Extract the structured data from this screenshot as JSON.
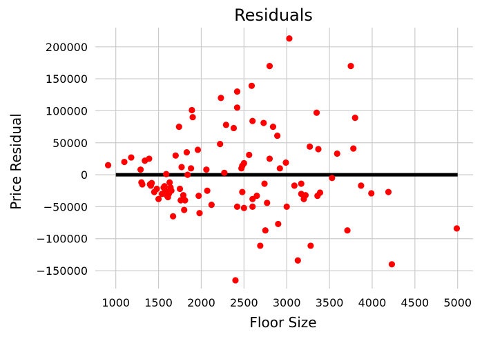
{
  "chart_data": {
    "type": "scatter",
    "title": "Residuals",
    "xlabel": "Floor Size",
    "ylabel": "Price Residual",
    "xlim": [
      760,
      5180
    ],
    "ylim": [
      -178000,
      230000
    ],
    "xticks": [
      1000,
      1500,
      2000,
      2500,
      3000,
      3500,
      4000,
      4500,
      5000
    ],
    "yticks": [
      -150000,
      -100000,
      -50000,
      0,
      50000,
      100000,
      150000,
      200000
    ],
    "xtick_labels": [
      "1000",
      "1500",
      "2000",
      "2500",
      "3000",
      "3500",
      "4000",
      "4500",
      "5000"
    ],
    "ytick_labels": [
      "−150000",
      "−100000",
      "−50000",
      "0",
      "50000",
      "100000",
      "150000",
      "200000"
    ],
    "grid": true,
    "style": "fivethirtyeight",
    "colors": {
      "points": "#ff0000",
      "reference_line": "#000000",
      "grid": "#cbcbcb",
      "background": "#ffffff"
    },
    "reference_line": {
      "y": 0,
      "x_range": [
        1000,
        5000
      ]
    },
    "points": [
      {
        "x": 910,
        "y": 15000
      },
      {
        "x": 1100,
        "y": 20000
      },
      {
        "x": 1180,
        "y": 27000
      },
      {
        "x": 1290,
        "y": 8000
      },
      {
        "x": 1300,
        "y": -12000
      },
      {
        "x": 1310,
        "y": -15000
      },
      {
        "x": 1340,
        "y": 22000
      },
      {
        "x": 1390,
        "y": 25000
      },
      {
        "x": 1400,
        "y": -15000
      },
      {
        "x": 1410,
        "y": -17000
      },
      {
        "x": 1420,
        "y": -13000
      },
      {
        "x": 1450,
        "y": -27000
      },
      {
        "x": 1480,
        "y": -22000
      },
      {
        "x": 1500,
        "y": -38000
      },
      {
        "x": 1540,
        "y": -30000
      },
      {
        "x": 1560,
        "y": -20000
      },
      {
        "x": 1570,
        "y": -18000
      },
      {
        "x": 1580,
        "y": -25000
      },
      {
        "x": 1590,
        "y": 1000
      },
      {
        "x": 1600,
        "y": -33000
      },
      {
        "x": 1610,
        "y": -35000
      },
      {
        "x": 1620,
        "y": -30000
      },
      {
        "x": 1630,
        "y": -12000
      },
      {
        "x": 1640,
        "y": -20000
      },
      {
        "x": 1650,
        "y": -25000
      },
      {
        "x": 1670,
        "y": -65000
      },
      {
        "x": 1700,
        "y": 30000
      },
      {
        "x": 1740,
        "y": 75000
      },
      {
        "x": 1750,
        "y": -22000
      },
      {
        "x": 1760,
        "y": -40000
      },
      {
        "x": 1770,
        "y": 12000
      },
      {
        "x": 1790,
        "y": -32000
      },
      {
        "x": 1800,
        "y": -55000
      },
      {
        "x": 1810,
        "y": -40000
      },
      {
        "x": 1830,
        "y": 35000
      },
      {
        "x": 1840,
        "y": 0
      },
      {
        "x": 1880,
        "y": 10000
      },
      {
        "x": 1890,
        "y": 101000
      },
      {
        "x": 1900,
        "y": 90000
      },
      {
        "x": 1960,
        "y": 39000
      },
      {
        "x": 1970,
        "y": -33000
      },
      {
        "x": 1980,
        "y": -60000
      },
      {
        "x": 2060,
        "y": 8000
      },
      {
        "x": 2070,
        "y": -25000
      },
      {
        "x": 2120,
        "y": -47000
      },
      {
        "x": 2220,
        "y": 48000
      },
      {
        "x": 2230,
        "y": 120000
      },
      {
        "x": 2270,
        "y": 3000
      },
      {
        "x": 2290,
        "y": 78000
      },
      {
        "x": 2380,
        "y": 73000
      },
      {
        "x": 2400,
        "y": -165000
      },
      {
        "x": 2420,
        "y": 130000
      },
      {
        "x": 2420,
        "y": 105000
      },
      {
        "x": 2420,
        "y": -50000
      },
      {
        "x": 2470,
        "y": 10000
      },
      {
        "x": 2480,
        "y": -27000
      },
      {
        "x": 2480,
        "y": 14000
      },
      {
        "x": 2500,
        "y": 18000
      },
      {
        "x": 2500,
        "y": -52000
      },
      {
        "x": 2560,
        "y": 31000
      },
      {
        "x": 2590,
        "y": 139000
      },
      {
        "x": 2600,
        "y": 84000
      },
      {
        "x": 2600,
        "y": -38000
      },
      {
        "x": 2600,
        "y": -50000
      },
      {
        "x": 2650,
        "y": -33000
      },
      {
        "x": 2690,
        "y": -111000
      },
      {
        "x": 2730,
        "y": 81000
      },
      {
        "x": 2740,
        "y": -14000
      },
      {
        "x": 2750,
        "y": -87000
      },
      {
        "x": 2770,
        "y": -44000
      },
      {
        "x": 2800,
        "y": 170000
      },
      {
        "x": 2800,
        "y": 25000
      },
      {
        "x": 2840,
        "y": 75000
      },
      {
        "x": 2890,
        "y": 61000
      },
      {
        "x": 2900,
        "y": -77000
      },
      {
        "x": 2920,
        "y": 10000
      },
      {
        "x": 2990,
        "y": 19000
      },
      {
        "x": 3000,
        "y": -50000
      },
      {
        "x": 3030,
        "y": 213000
      },
      {
        "x": 3090,
        "y": -17000
      },
      {
        "x": 3130,
        "y": -134000
      },
      {
        "x": 3170,
        "y": -14000
      },
      {
        "x": 3170,
        "y": -30000
      },
      {
        "x": 3200,
        "y": -38000
      },
      {
        "x": 3220,
        "y": -32000
      },
      {
        "x": 3270,
        "y": 44000
      },
      {
        "x": 3280,
        "y": -111000
      },
      {
        "x": 3350,
        "y": 97000
      },
      {
        "x": 3360,
        "y": -33000
      },
      {
        "x": 3370,
        "y": 40000
      },
      {
        "x": 3390,
        "y": -28000
      },
      {
        "x": 3530,
        "y": -5000
      },
      {
        "x": 3590,
        "y": 33000
      },
      {
        "x": 3710,
        "y": -87000
      },
      {
        "x": 3750,
        "y": 170000
      },
      {
        "x": 3780,
        "y": 41000
      },
      {
        "x": 3800,
        "y": 89000
      },
      {
        "x": 3870,
        "y": -17000
      },
      {
        "x": 3990,
        "y": -29000
      },
      {
        "x": 4190,
        "y": -27000
      },
      {
        "x": 4230,
        "y": -140000
      },
      {
        "x": 4990,
        "y": -84000
      }
    ]
  }
}
